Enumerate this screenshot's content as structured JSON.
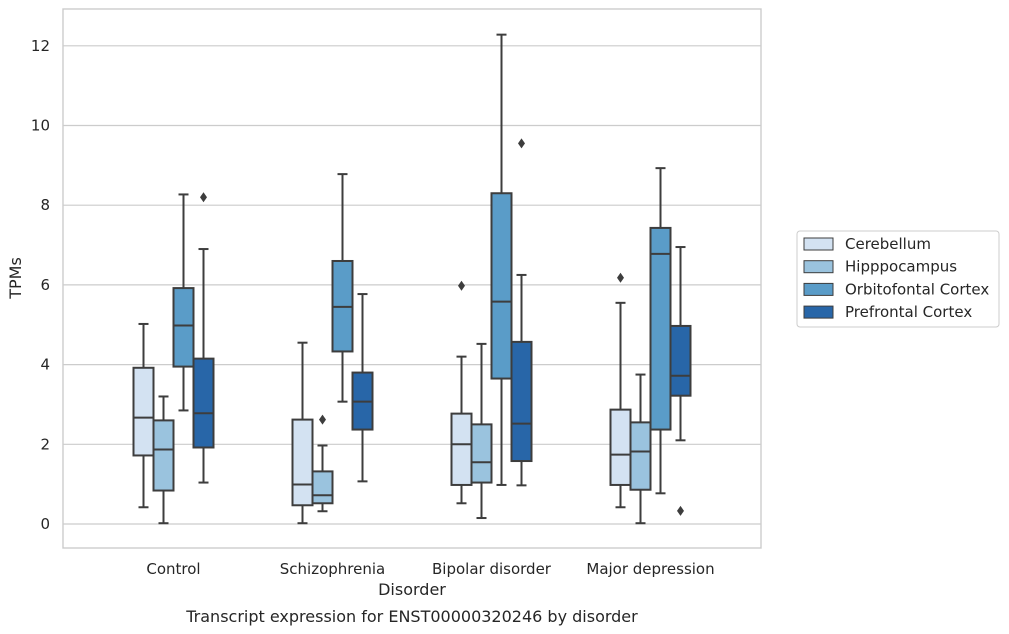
{
  "chart_data": {
    "type": "box",
    "caption": "Transcript expression for ENST00000320246 by disorder",
    "xlabel": "Disorder",
    "ylabel": "TPMs",
    "ylim": [
      -0.6,
      12.9
    ],
    "yticks": [
      0,
      2,
      4,
      6,
      8,
      10,
      12
    ],
    "grid": "horizontal",
    "legend_position": "right",
    "categories": [
      "Control",
      "Schizophrenia",
      "Bipolar disorder",
      "Major depression"
    ],
    "series": [
      {
        "name": "Cerebellum",
        "color": "#d3e2f2",
        "boxes": [
          {
            "whislo": 0.42,
            "q1": 1.72,
            "med": 2.67,
            "q3": 3.92,
            "whishi": 5.02,
            "fliers": []
          },
          {
            "whislo": 0.02,
            "q1": 0.47,
            "med": 0.99,
            "q3": 2.62,
            "whishi": 4.55,
            "fliers": []
          },
          {
            "whislo": 0.52,
            "q1": 0.98,
            "med": 2.0,
            "q3": 2.77,
            "whishi": 4.2,
            "fliers": [
              5.98
            ]
          },
          {
            "whislo": 0.42,
            "q1": 0.98,
            "med": 1.74,
            "q3": 2.87,
            "whishi": 5.55,
            "fliers": [
              6.18
            ]
          }
        ]
      },
      {
        "name": "Hipppocampus",
        "color": "#9ac3de",
        "boxes": [
          {
            "whislo": 0.02,
            "q1": 0.84,
            "med": 1.87,
            "q3": 2.6,
            "whishi": 3.2,
            "fliers": []
          },
          {
            "whislo": 0.32,
            "q1": 0.52,
            "med": 0.72,
            "q3": 1.32,
            "whishi": 1.97,
            "fliers": [
              2.62
            ]
          },
          {
            "whislo": 0.15,
            "q1": 1.04,
            "med": 1.55,
            "q3": 2.5,
            "whishi": 4.52,
            "fliers": []
          },
          {
            "whislo": 0.02,
            "q1": 0.86,
            "med": 1.82,
            "q3": 2.55,
            "whishi": 3.75,
            "fliers": []
          }
        ]
      },
      {
        "name": "Orbitofontal Cortex",
        "color": "#5a9cc8",
        "boxes": [
          {
            "whislo": 2.85,
            "q1": 3.95,
            "med": 4.98,
            "q3": 5.92,
            "whishi": 8.27,
            "fliers": []
          },
          {
            "whislo": 3.07,
            "q1": 4.33,
            "med": 5.45,
            "q3": 6.6,
            "whishi": 8.78,
            "fliers": []
          },
          {
            "whislo": 0.98,
            "q1": 3.65,
            "med": 5.58,
            "q3": 8.3,
            "whishi": 12.28,
            "fliers": []
          },
          {
            "whislo": 0.77,
            "q1": 2.37,
            "med": 6.78,
            "q3": 7.43,
            "whishi": 8.93,
            "fliers": []
          }
        ]
      },
      {
        "name": "Prefrontal Cortex",
        "color": "#2866a8",
        "boxes": [
          {
            "whislo": 1.04,
            "q1": 1.92,
            "med": 2.78,
            "q3": 4.15,
            "whishi": 6.9,
            "fliers": [
              8.2
            ]
          },
          {
            "whislo": 1.07,
            "q1": 2.37,
            "med": 3.07,
            "q3": 3.8,
            "whishi": 5.77,
            "fliers": []
          },
          {
            "whislo": 0.97,
            "q1": 1.58,
            "med": 2.52,
            "q3": 4.57,
            "whishi": 6.25,
            "fliers": [
              9.55
            ]
          },
          {
            "whislo": 2.1,
            "q1": 3.22,
            "med": 3.72,
            "q3": 4.97,
            "whishi": 6.95,
            "fliers": [
              0.33
            ]
          }
        ]
      }
    ]
  }
}
